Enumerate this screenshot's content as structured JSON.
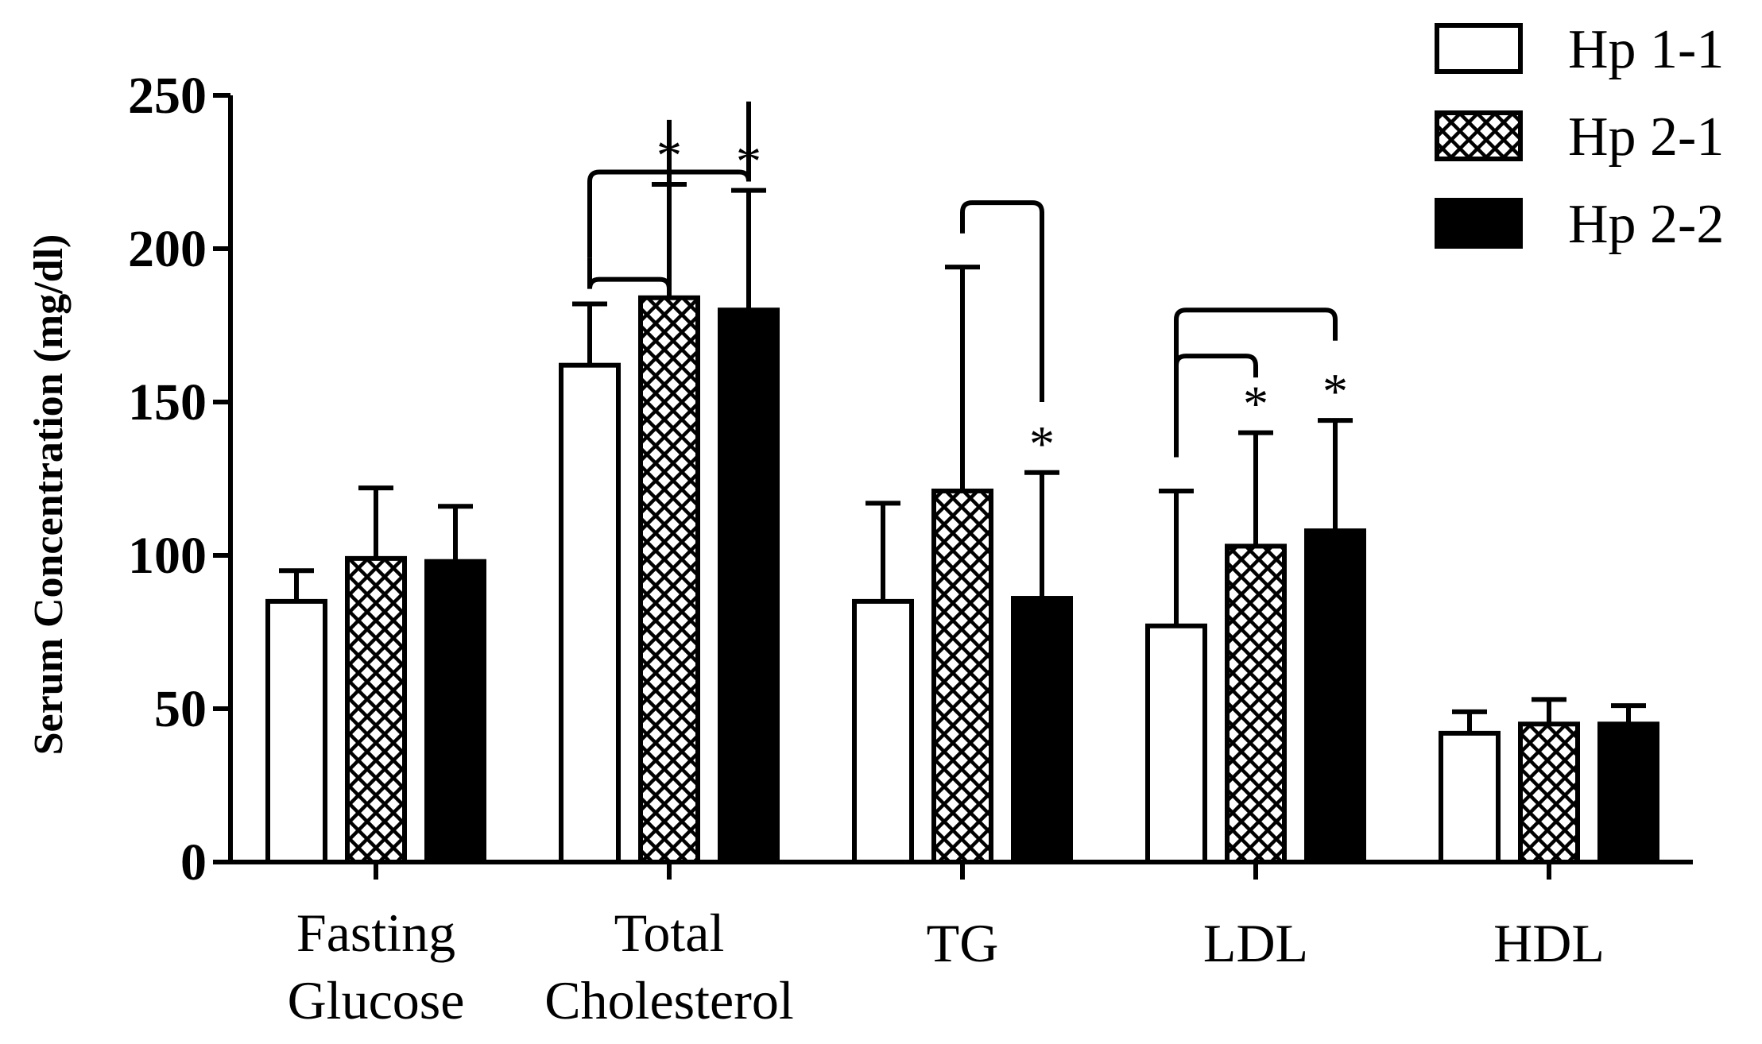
{
  "chart_data": {
    "type": "bar",
    "ylabel": "Serum Concentration (mg/dl)",
    "xlabel": "",
    "ylim": [
      0,
      250
    ],
    "yticks": [
      0,
      50,
      100,
      150,
      200,
      250
    ],
    "categories": [
      [
        "Fasting",
        "Glucose"
      ],
      [
        "Total",
        "Cholesterol"
      ],
      [
        "TG"
      ],
      [
        "LDL"
      ],
      [
        "HDL"
      ]
    ],
    "series": [
      {
        "name": "Hp 1-1",
        "fill": "open",
        "values": [
          85,
          162,
          85,
          77,
          42
        ],
        "errors": [
          10,
          20,
          32,
          44,
          7
        ]
      },
      {
        "name": "Hp 2-1",
        "fill": "crosshatch",
        "values": [
          99,
          184,
          121,
          103,
          45
        ],
        "errors": [
          23,
          37,
          73,
          37,
          8
        ]
      },
      {
        "name": "Hp 2-2",
        "fill": "solid",
        "values": [
          98,
          180,
          86,
          108,
          45
        ],
        "errors": [
          18,
          39,
          41,
          36,
          6
        ]
      }
    ],
    "significance": [
      {
        "category": 1,
        "from": 0,
        "to": 1,
        "label": "*"
      },
      {
        "category": 1,
        "from": 0,
        "to": 2,
        "label": "*"
      },
      {
        "category": 2,
        "from": 1,
        "to": 2,
        "label": "*"
      },
      {
        "category": 3,
        "from": 0,
        "to": 1,
        "label": "*"
      },
      {
        "category": 3,
        "from": 0,
        "to": 2,
        "label": "*"
      }
    ],
    "legend": {
      "position": "top-right",
      "entries": [
        "Hp 1-1",
        "Hp 2-1",
        "Hp 2-2"
      ]
    },
    "grid": false
  }
}
